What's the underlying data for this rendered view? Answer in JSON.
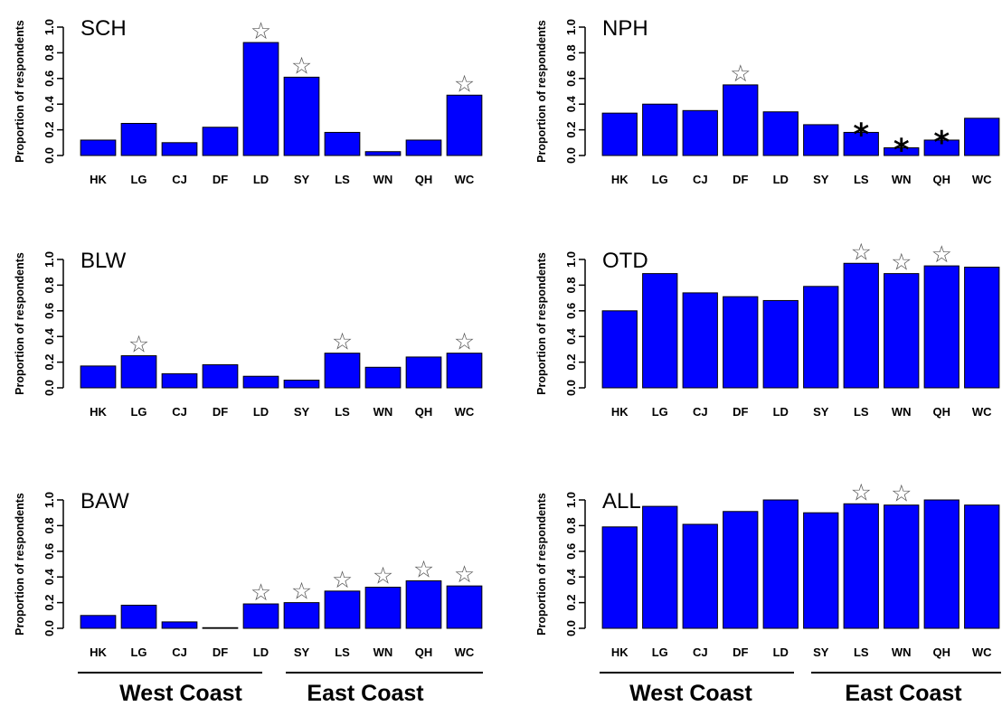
{
  "colors": {
    "bar": "#0000ff",
    "bar_outline": "#000000",
    "axis": "#000000"
  },
  "markers": {
    "open_star": "☆",
    "asterisk": "*"
  },
  "region_labels": {
    "west": "West Coast",
    "east": "East Coast"
  },
  "chart_data": [
    {
      "type": "bar",
      "title": "SCH",
      "ylabel": "Proportion of respondents",
      "ylim": [
        0,
        1
      ],
      "yticks": [
        "0.0",
        "0.2",
        "0.4",
        "0.6",
        "0.8",
        "1.0"
      ],
      "categories": [
        "HK",
        "LG",
        "CJ",
        "DF",
        "LD",
        "SY",
        "LS",
        "WN",
        "QH",
        "WC"
      ],
      "values": [
        0.12,
        0.25,
        0.1,
        0.22,
        0.88,
        0.61,
        0.18,
        0.03,
        0.12,
        0.47
      ],
      "markers": [
        "",
        "",
        "",
        "",
        "open_star",
        "open_star",
        "",
        "",
        "",
        "open_star"
      ]
    },
    {
      "type": "bar",
      "title": "NPH",
      "ylabel": "Proportion of respondents",
      "ylim": [
        0,
        1
      ],
      "yticks": [
        "0.0",
        "0.2",
        "0.4",
        "0.6",
        "0.8",
        "1.0"
      ],
      "categories": [
        "HK",
        "LG",
        "CJ",
        "DF",
        "LD",
        "SY",
        "LS",
        "WN",
        "QH",
        "WC"
      ],
      "values": [
        0.33,
        0.4,
        0.35,
        0.55,
        0.34,
        0.24,
        0.18,
        0.06,
        0.12,
        0.29
      ],
      "markers": [
        "",
        "",
        "",
        "open_star",
        "",
        "",
        "asterisk",
        "asterisk",
        "asterisk",
        ""
      ]
    },
    {
      "type": "bar",
      "title": "BLW",
      "ylabel": "Proportion of respondents",
      "ylim": [
        0,
        1
      ],
      "yticks": [
        "0.0",
        "0.2",
        "0.4",
        "0.6",
        "0.8",
        "1.0"
      ],
      "categories": [
        "HK",
        "LG",
        "CJ",
        "DF",
        "LD",
        "SY",
        "LS",
        "WN",
        "QH",
        "WC"
      ],
      "values": [
        0.17,
        0.25,
        0.11,
        0.18,
        0.09,
        0.06,
        0.27,
        0.16,
        0.24,
        0.27
      ],
      "markers": [
        "",
        "open_star",
        "",
        "",
        "",
        "",
        "open_star",
        "",
        "",
        "open_star"
      ]
    },
    {
      "type": "bar",
      "title": "OTD",
      "ylabel": "Proportion of respondents",
      "ylim": [
        0,
        1
      ],
      "yticks": [
        "0.0",
        "0.2",
        "0.4",
        "0.6",
        "0.8",
        "1.0"
      ],
      "categories": [
        "HK",
        "LG",
        "CJ",
        "DF",
        "LD",
        "SY",
        "LS",
        "WN",
        "QH",
        "WC"
      ],
      "values": [
        0.6,
        0.89,
        0.74,
        0.71,
        0.68,
        0.79,
        0.97,
        0.89,
        0.95,
        0.94
      ],
      "markers": [
        "",
        "",
        "",
        "",
        "",
        "",
        "open_star",
        "open_star",
        "open_star",
        ""
      ]
    },
    {
      "type": "bar",
      "title": "BAW",
      "ylabel": "Proportion of respondents",
      "ylim": [
        0,
        1
      ],
      "yticks": [
        "0.0",
        "0.2",
        "0.4",
        "0.6",
        "0.8",
        "1.0"
      ],
      "categories": [
        "HK",
        "LG",
        "CJ",
        "DF",
        "LD",
        "SY",
        "LS",
        "WN",
        "QH",
        "WC"
      ],
      "values": [
        0.1,
        0.18,
        0.05,
        0.005,
        0.19,
        0.2,
        0.29,
        0.32,
        0.37,
        0.33
      ],
      "markers": [
        "",
        "",
        "",
        "",
        "open_star",
        "open_star",
        "open_star",
        "open_star",
        "open_star",
        "open_star"
      ]
    },
    {
      "type": "bar",
      "title": "ALL",
      "ylabel": "Proportion of respondents",
      "ylim": [
        0,
        1
      ],
      "yticks": [
        "0.0",
        "0.2",
        "0.4",
        "0.6",
        "0.8",
        "1.0"
      ],
      "categories": [
        "HK",
        "LG",
        "CJ",
        "DF",
        "LD",
        "SY",
        "LS",
        "WN",
        "QH",
        "WC"
      ],
      "values": [
        0.79,
        0.95,
        0.81,
        0.91,
        1.0,
        0.9,
        0.97,
        0.96,
        1.0,
        0.96
      ],
      "markers": [
        "",
        "",
        "",
        "",
        "",
        "",
        "open_star",
        "open_star",
        "",
        ""
      ]
    }
  ]
}
